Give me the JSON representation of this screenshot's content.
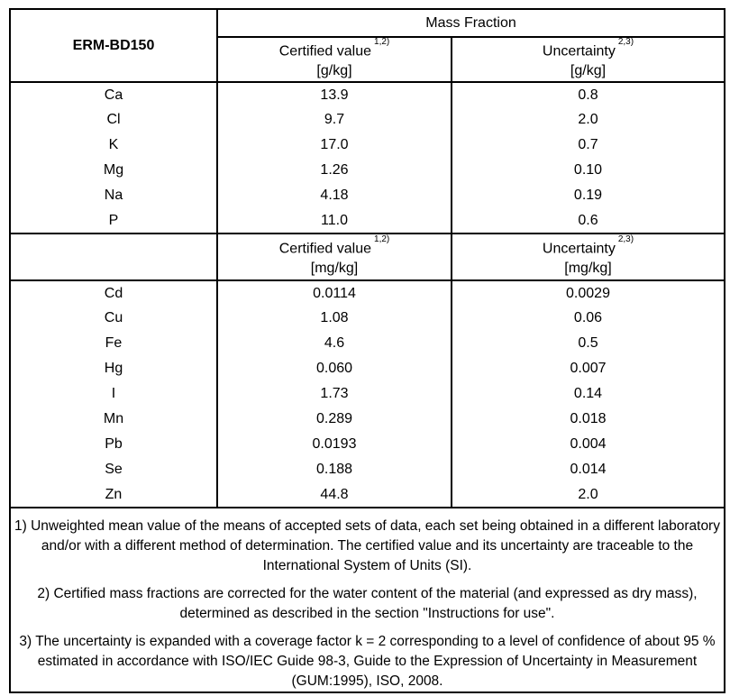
{
  "page": {
    "material_id": "ERM-BD150",
    "table": {
      "group_header": "Mass Fraction",
      "certified_label": "Certified value",
      "certified_sup": "1,2)",
      "uncertainty_label": "Uncertainty",
      "uncertainty_sup": "2,3)",
      "unit_g": "[g/kg]",
      "unit_mg": "[mg/kg]",
      "rows_g": [
        {
          "element": "Ca",
          "certified": "13.9",
          "uncertainty": "0.8"
        },
        {
          "element": "Cl",
          "certified": "9.7",
          "uncertainty": "2.0"
        },
        {
          "element": "K",
          "certified": "17.0",
          "uncertainty": "0.7"
        },
        {
          "element": "Mg",
          "certified": "1.26",
          "uncertainty": "0.10"
        },
        {
          "element": "Na",
          "certified": "4.18",
          "uncertainty": "0.19"
        },
        {
          "element": "P",
          "certified": "11.0",
          "uncertainty": "0.6"
        }
      ],
      "rows_mg": [
        {
          "element": "Cd",
          "certified": "0.0114",
          "uncertainty": "0.0029"
        },
        {
          "element": "Cu",
          "certified": "1.08",
          "uncertainty": "0.06"
        },
        {
          "element": "Fe",
          "certified": "4.6",
          "uncertainty": "0.5"
        },
        {
          "element": "Hg",
          "certified": "0.060",
          "uncertainty": "0.007"
        },
        {
          "element": "I",
          "certified": "1.73",
          "uncertainty": "0.14"
        },
        {
          "element": "Mn",
          "certified": "0.289",
          "uncertainty": "0.018"
        },
        {
          "element": "Pb",
          "certified": "0.0193",
          "uncertainty": "0.004"
        },
        {
          "element": "Se",
          "certified": "0.188",
          "uncertainty": "0.014"
        },
        {
          "element": "Zn",
          "certified": "44.8",
          "uncertainty": "2.0"
        }
      ]
    },
    "footnotes": [
      "1) Unweighted mean value of the means of accepted sets of data, each set being obtained in a different laboratory and/or with a different method of determination. The certified value and its uncertainty are traceable to the International System of Units (SI).",
      "2) Certified mass fractions are corrected for the water content of the material (and expressed as dry mass), determined as described in the section \"Instructions for use\".",
      "3) The uncertainty is  expanded with a coverage factor k = 2 corresponding to a level of confidence of about 95 % estimated in accordance with ISO/IEC Guide 98-3, Guide to the Expression of Uncertainty in Measurement (GUM:1995), ISO, 2008."
    ],
    "colors": {
      "border": "#000000",
      "text": "#000000",
      "background": "#ffffff"
    }
  }
}
